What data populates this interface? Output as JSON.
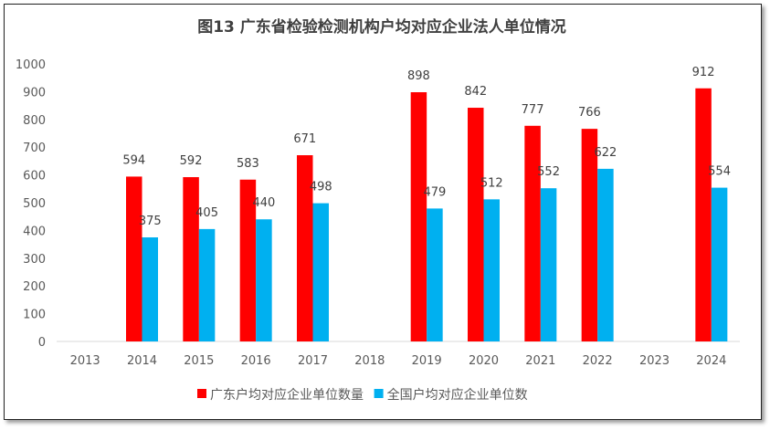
{
  "chart_data": {
    "type": "bar",
    "title": "图13  广东省检验检测机构户均对应企业法人单位情况",
    "categories": [
      "2013",
      "2014",
      "2015",
      "2016",
      "2017",
      "2018",
      "2019",
      "2020",
      "2021",
      "2022",
      "2023",
      "2024"
    ],
    "series": [
      {
        "name": "广东户均对应企业单位数量",
        "color": "#FF0000",
        "values": [
          null,
          594,
          592,
          583,
          671,
          null,
          898,
          842,
          777,
          766,
          null,
          912
        ]
      },
      {
        "name": "全国户均对应企业单位数",
        "color": "#00B0F0",
        "values": [
          null,
          375,
          405,
          440,
          498,
          null,
          479,
          512,
          552,
          622,
          null,
          554
        ]
      }
    ],
    "ylim": [
      0,
      1000
    ],
    "yticks": [
      0,
      100,
      200,
      300,
      400,
      500,
      600,
      700,
      800,
      900,
      1000
    ],
    "grid": false,
    "legend": "bottom",
    "data_labels": true
  }
}
